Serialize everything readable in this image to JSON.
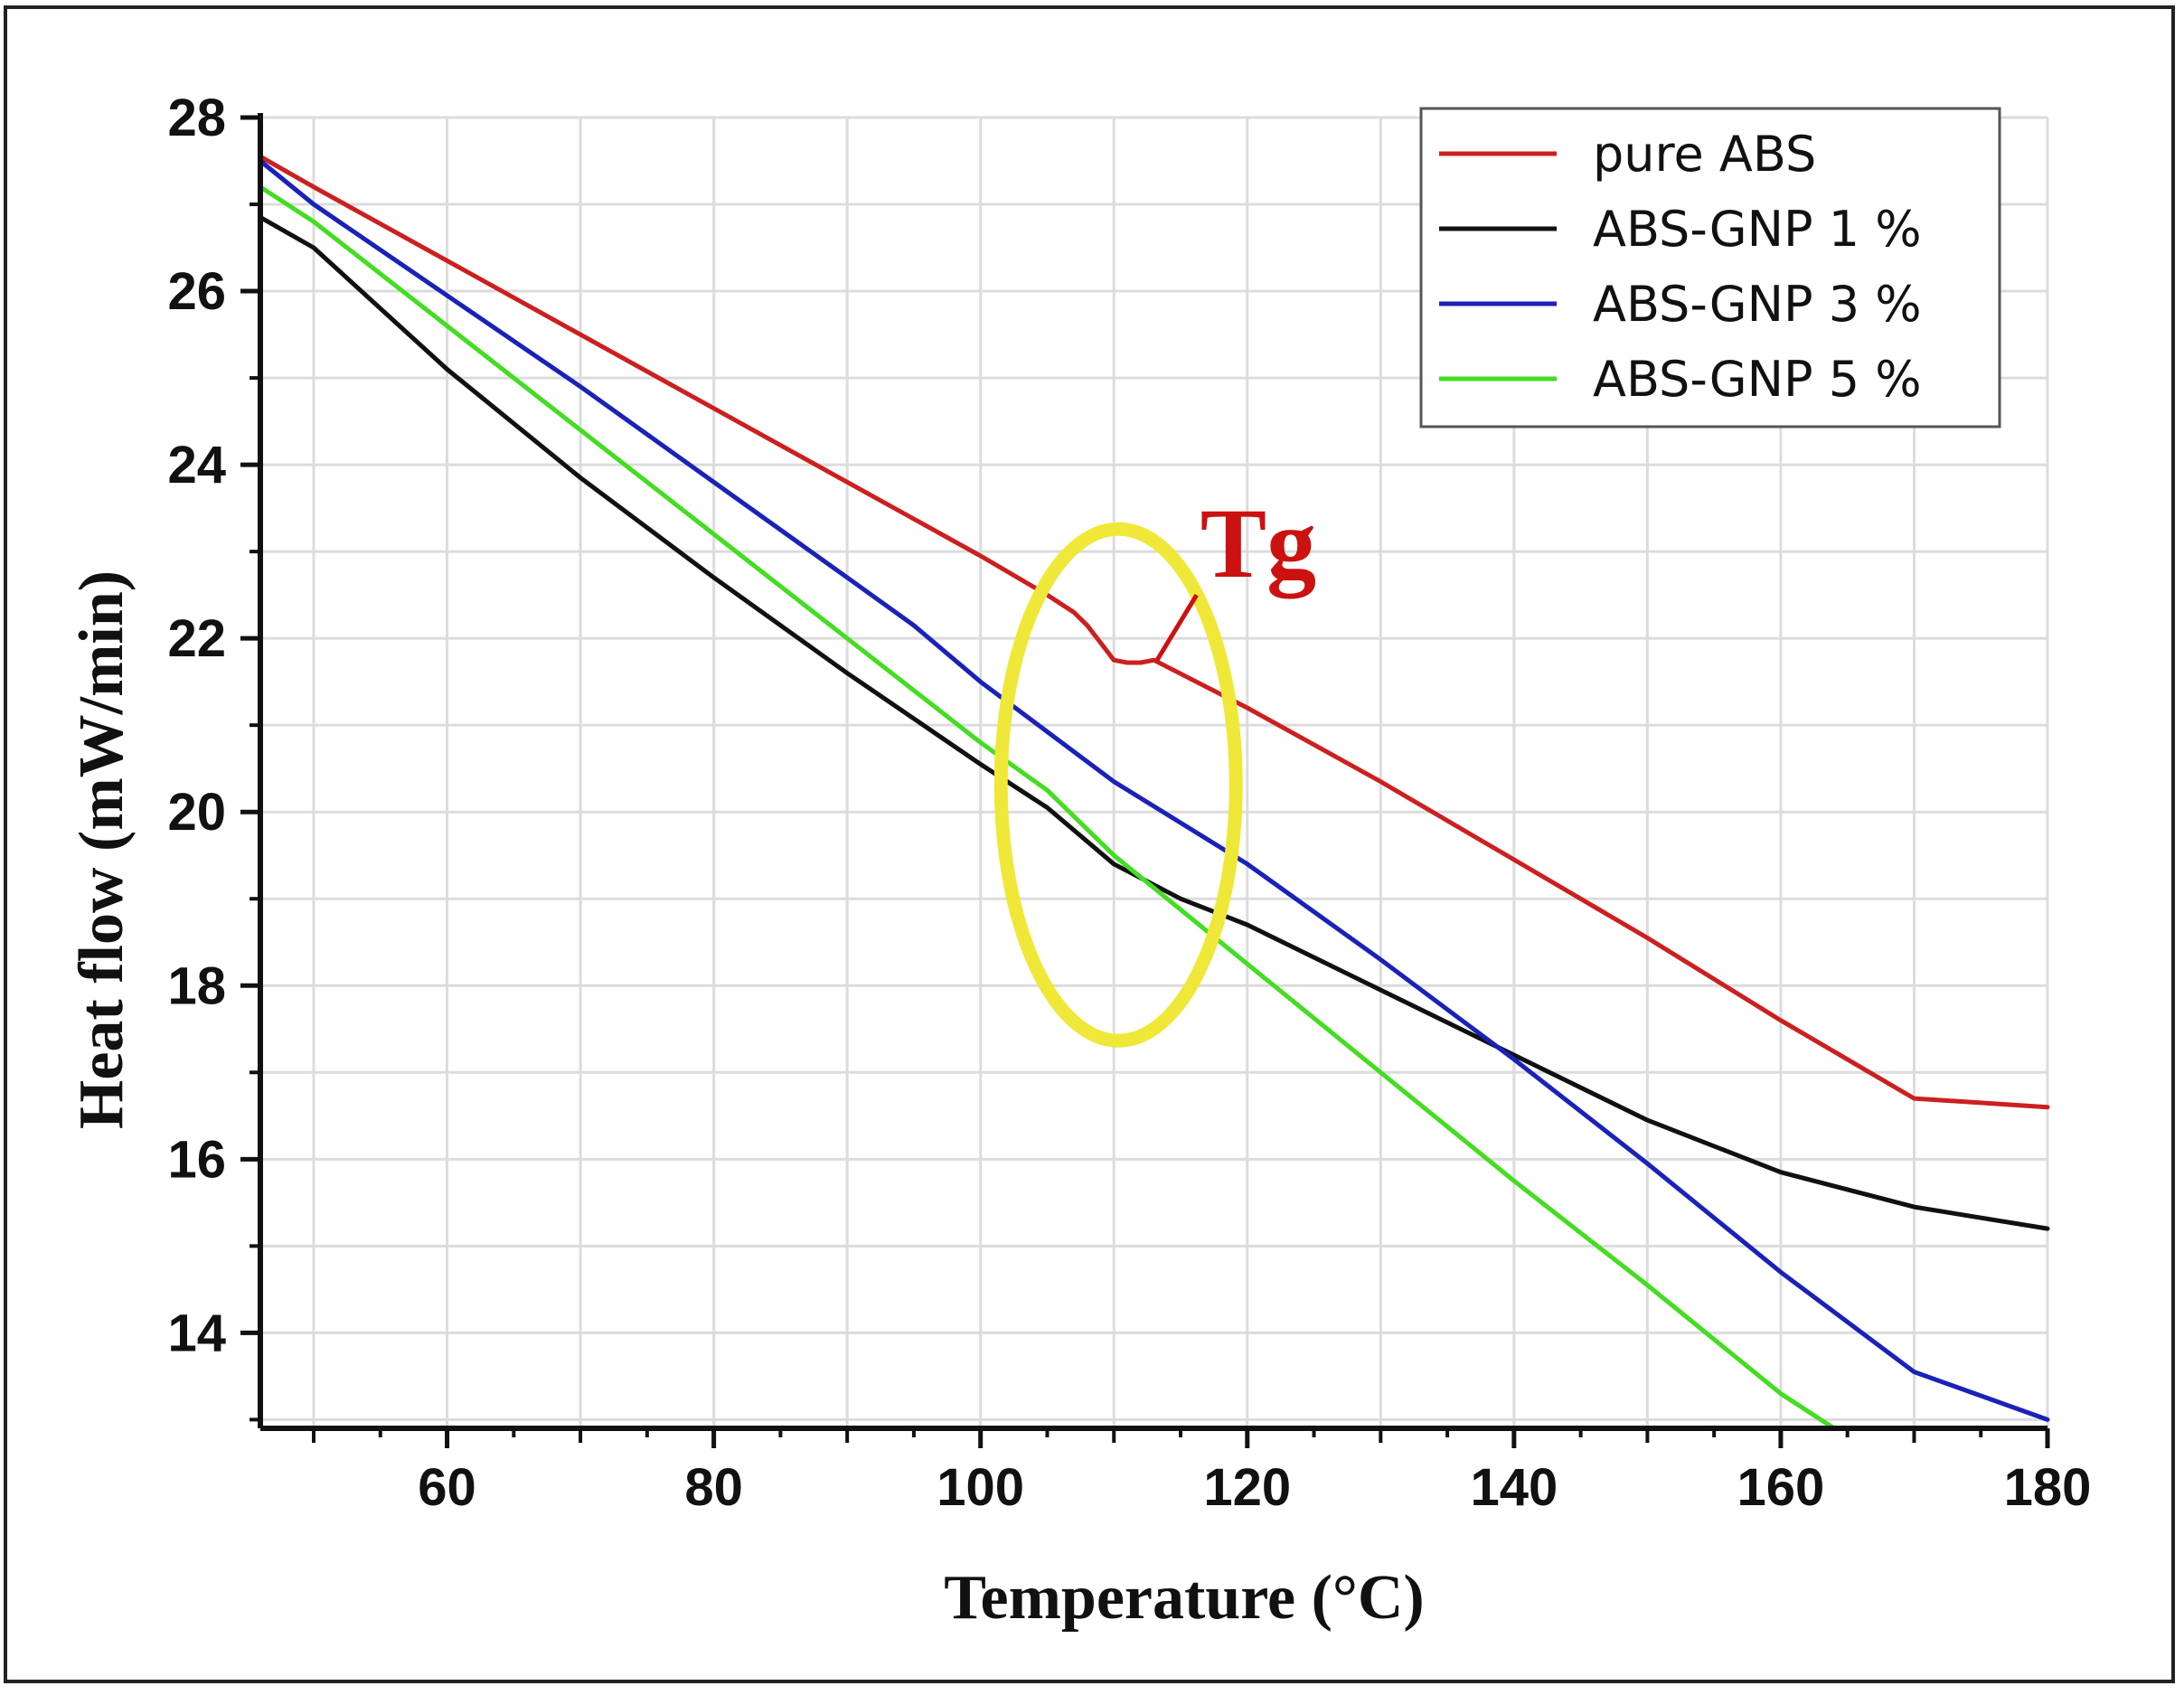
{
  "chart_data": {
    "type": "line",
    "xlabel": "Temperature (°C)",
    "ylabel": "Heat flow (mW/min)",
    "xlim": [
      46,
      180
    ],
    "ylim": [
      12.9,
      28
    ],
    "x_ticks": [
      60,
      80,
      100,
      120,
      140,
      160,
      180
    ],
    "y_ticks": [
      14,
      16,
      18,
      20,
      22,
      24,
      26,
      28
    ],
    "grid": true,
    "legend_position": "top-right",
    "series": [
      {
        "name": "pure ABS",
        "color": "#cc2020",
        "points": [
          [
            46,
            27.55
          ],
          [
            50,
            27.2
          ],
          [
            60,
            26.35
          ],
          [
            70,
            25.5
          ],
          [
            80,
            24.65
          ],
          [
            90,
            23.8
          ],
          [
            100,
            22.95
          ],
          [
            105,
            22.5
          ],
          [
            107,
            22.3
          ],
          [
            108,
            22.15
          ],
          [
            109,
            21.95
          ],
          [
            110,
            21.75
          ],
          [
            111,
            21.72
          ],
          [
            112,
            21.72
          ],
          [
            113,
            21.75
          ],
          [
            120,
            21.2
          ],
          [
            130,
            20.35
          ],
          [
            140,
            19.45
          ],
          [
            150,
            18.55
          ],
          [
            160,
            17.6
          ],
          [
            170,
            16.7
          ],
          [
            180,
            16.6
          ]
        ]
      },
      {
        "name": "ABS-GNP 1 %",
        "color": "#111111",
        "points": [
          [
            46,
            26.85
          ],
          [
            50,
            26.5
          ],
          [
            60,
            25.1
          ],
          [
            70,
            23.85
          ],
          [
            80,
            22.7
          ],
          [
            90,
            21.6
          ],
          [
            100,
            20.55
          ],
          [
            105,
            20.05
          ],
          [
            110,
            19.4
          ],
          [
            115,
            19.0
          ],
          [
            120,
            18.7
          ],
          [
            130,
            17.95
          ],
          [
            140,
            17.2
          ],
          [
            150,
            16.45
          ],
          [
            160,
            15.85
          ],
          [
            170,
            15.45
          ],
          [
            180,
            15.2
          ]
        ]
      },
      {
        "name": "ABS-GNP 3 %",
        "color": "#1a22b8",
        "points": [
          [
            46,
            27.5
          ],
          [
            50,
            27.0
          ],
          [
            60,
            25.95
          ],
          [
            70,
            24.9
          ],
          [
            80,
            23.8
          ],
          [
            90,
            22.7
          ],
          [
            95,
            22.15
          ],
          [
            100,
            21.5
          ],
          [
            110,
            20.35
          ],
          [
            120,
            19.4
          ],
          [
            130,
            18.3
          ],
          [
            140,
            17.15
          ],
          [
            150,
            15.95
          ],
          [
            160,
            14.7
          ],
          [
            170,
            13.55
          ],
          [
            180,
            13.0
          ]
        ]
      },
      {
        "name": "ABS-GNP 5 %",
        "color": "#44dd22",
        "points": [
          [
            46,
            27.2
          ],
          [
            50,
            26.8
          ],
          [
            60,
            25.6
          ],
          [
            70,
            24.4
          ],
          [
            80,
            23.2
          ],
          [
            90,
            22.0
          ],
          [
            100,
            20.8
          ],
          [
            105,
            20.25
          ],
          [
            110,
            19.5
          ],
          [
            120,
            18.25
          ],
          [
            130,
            17.0
          ],
          [
            140,
            15.75
          ],
          [
            150,
            14.55
          ],
          [
            160,
            13.3
          ],
          [
            164,
            12.9
          ]
        ]
      }
    ],
    "annotations": {
      "label": "Tg",
      "label_color": "#cc1111",
      "highlight_color": "#f0e838",
      "highlight_center": [
        110,
        20.0
      ]
    }
  }
}
